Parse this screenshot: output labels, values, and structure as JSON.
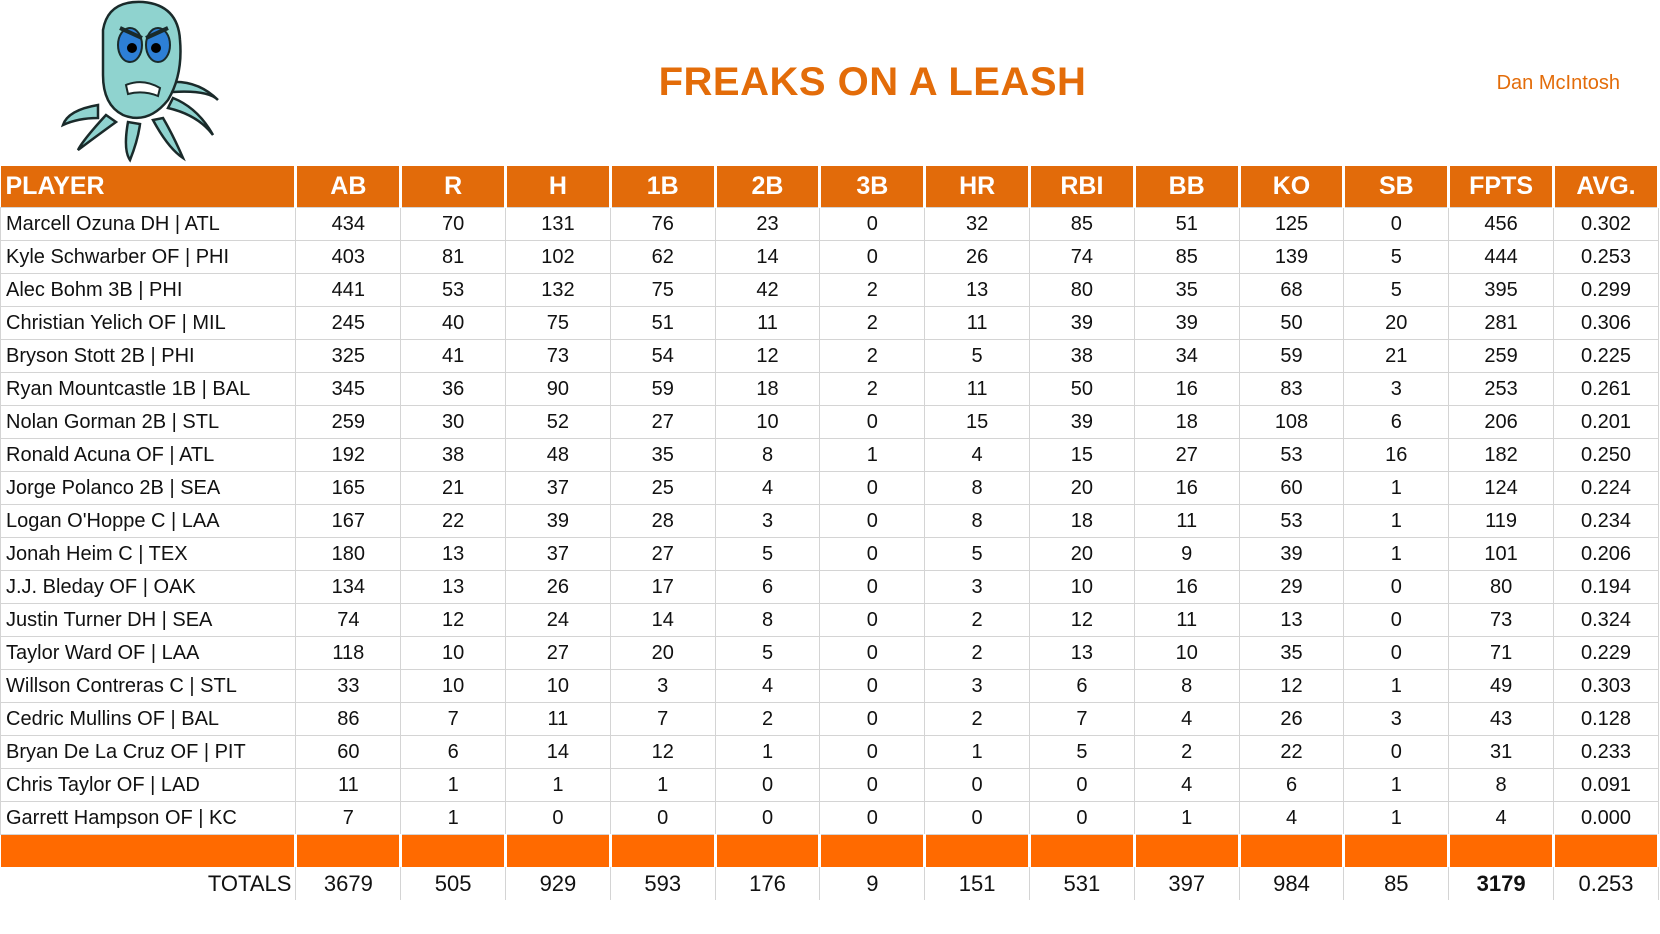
{
  "header": {
    "title": "FREAKS ON A LEASH",
    "owner": "Dan McIntosh",
    "logo": "octopus-mascot"
  },
  "colors": {
    "header_orange": "#E26B0A",
    "band_orange": "#FF6A00",
    "title": "#E36C09"
  },
  "columns": [
    "PLAYER",
    "AB",
    "R",
    "H",
    "1B",
    "2B",
    "3B",
    "HR",
    "RBI",
    "BB",
    "KO",
    "SB",
    "FPTS",
    "AVG."
  ],
  "rows": [
    [
      "Marcell Ozuna DH | ATL",
      "434",
      "70",
      "131",
      "76",
      "23",
      "0",
      "32",
      "85",
      "51",
      "125",
      "0",
      "456",
      "0.302"
    ],
    [
      "Kyle Schwarber OF | PHI",
      "403",
      "81",
      "102",
      "62",
      "14",
      "0",
      "26",
      "74",
      "85",
      "139",
      "5",
      "444",
      "0.253"
    ],
    [
      "Alec Bohm 3B | PHI",
      "441",
      "53",
      "132",
      "75",
      "42",
      "2",
      "13",
      "80",
      "35",
      "68",
      "5",
      "395",
      "0.299"
    ],
    [
      "Christian Yelich OF | MIL",
      "245",
      "40",
      "75",
      "51",
      "11",
      "2",
      "11",
      "39",
      "39",
      "50",
      "20",
      "281",
      "0.306"
    ],
    [
      "Bryson Stott 2B | PHI",
      "325",
      "41",
      "73",
      "54",
      "12",
      "2",
      "5",
      "38",
      "34",
      "59",
      "21",
      "259",
      "0.225"
    ],
    [
      "Ryan Mountcastle 1B | BAL",
      "345",
      "36",
      "90",
      "59",
      "18",
      "2",
      "11",
      "50",
      "16",
      "83",
      "3",
      "253",
      "0.261"
    ],
    [
      "Nolan Gorman 2B | STL",
      "259",
      "30",
      "52",
      "27",
      "10",
      "0",
      "15",
      "39",
      "18",
      "108",
      "6",
      "206",
      "0.201"
    ],
    [
      "Ronald Acuna OF | ATL",
      "192",
      "38",
      "48",
      "35",
      "8",
      "1",
      "4",
      "15",
      "27",
      "53",
      "16",
      "182",
      "0.250"
    ],
    [
      "Jorge Polanco 2B | SEA",
      "165",
      "21",
      "37",
      "25",
      "4",
      "0",
      "8",
      "20",
      "16",
      "60",
      "1",
      "124",
      "0.224"
    ],
    [
      "Logan O'Hoppe C | LAA",
      "167",
      "22",
      "39",
      "28",
      "3",
      "0",
      "8",
      "18",
      "11",
      "53",
      "1",
      "119",
      "0.234"
    ],
    [
      "Jonah Heim C | TEX",
      "180",
      "13",
      "37",
      "27",
      "5",
      "0",
      "5",
      "20",
      "9",
      "39",
      "1",
      "101",
      "0.206"
    ],
    [
      "J.J. Bleday OF | OAK",
      "134",
      "13",
      "26",
      "17",
      "6",
      "0",
      "3",
      "10",
      "16",
      "29",
      "0",
      "80",
      "0.194"
    ],
    [
      "Justin Turner DH | SEA",
      "74",
      "12",
      "24",
      "14",
      "8",
      "0",
      "2",
      "12",
      "11",
      "13",
      "0",
      "73",
      "0.324"
    ],
    [
      "Taylor Ward OF | LAA",
      "118",
      "10",
      "27",
      "20",
      "5",
      "0",
      "2",
      "13",
      "10",
      "35",
      "0",
      "71",
      "0.229"
    ],
    [
      "Willson Contreras C | STL",
      "33",
      "10",
      "10",
      "3",
      "4",
      "0",
      "3",
      "6",
      "8",
      "12",
      "1",
      "49",
      "0.303"
    ],
    [
      "Cedric Mullins OF | BAL",
      "86",
      "7",
      "11",
      "7",
      "2",
      "0",
      "2",
      "7",
      "4",
      "26",
      "3",
      "43",
      "0.128"
    ],
    [
      "Bryan De La Cruz OF | PIT",
      "60",
      "6",
      "14",
      "12",
      "1",
      "0",
      "1",
      "5",
      "2",
      "22",
      "0",
      "31",
      "0.233"
    ],
    [
      "Chris Taylor OF | LAD",
      "11",
      "1",
      "1",
      "1",
      "0",
      "0",
      "0",
      "0",
      "4",
      "6",
      "1",
      "8",
      "0.091"
    ],
    [
      "Garrett Hampson OF | KC",
      "7",
      "1",
      "0",
      "0",
      "0",
      "0",
      "0",
      "0",
      "1",
      "4",
      "1",
      "4",
      "0.000"
    ]
  ],
  "totals": [
    "TOTALS",
    "3679",
    "505",
    "929",
    "593",
    "176",
    "9",
    "151",
    "531",
    "397",
    "984",
    "85",
    "3179",
    "0.253"
  ]
}
